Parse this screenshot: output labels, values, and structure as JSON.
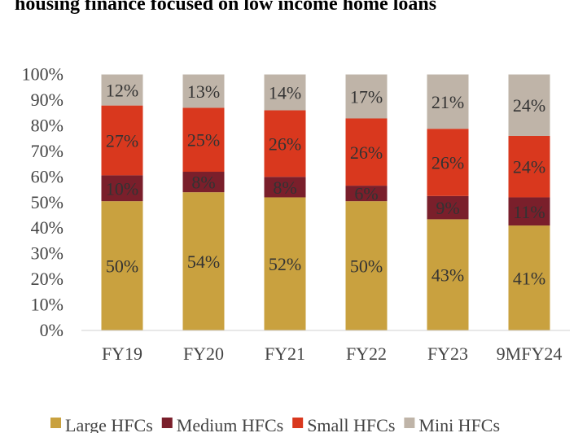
{
  "title": "housing finance focused on low income home loans",
  "chart_data": {
    "type": "bar",
    "stacked": true,
    "percent": true,
    "categories": [
      "FY19",
      "FY20",
      "FY21",
      "FY22",
      "FY23",
      "9MFY24"
    ],
    "series": [
      {
        "name": "Large HFCs",
        "color": "#C9A13F",
        "values": [
          50,
          54,
          52,
          50,
          43,
          41
        ],
        "labels": [
          "50%",
          "54%",
          "52%",
          "50%",
          "43%",
          "41%"
        ]
      },
      {
        "name": "Medium HFCs",
        "color": "#7A1F2B",
        "values": [
          10,
          8,
          8,
          6,
          9,
          11
        ],
        "labels": [
          "10%",
          "8%",
          "8%",
          "6%",
          "9%",
          "11%"
        ]
      },
      {
        "name": "Small HFCs",
        "color": "#D9381E",
        "values": [
          27,
          25,
          26,
          26,
          26,
          24
        ],
        "labels": [
          "27%",
          "25%",
          "26%",
          "26%",
          "26%",
          "24%"
        ]
      },
      {
        "name": "Mini HFCs",
        "color": "#BFB4A8",
        "values": [
          12,
          13,
          14,
          17,
          21,
          24
        ],
        "labels": [
          "12%",
          "13%",
          "14%",
          "17%",
          "21%",
          "24%"
        ]
      }
    ],
    "yticks": [
      "0%",
      "10%",
      "20%",
      "30%",
      "40%",
      "50%",
      "60%",
      "70%",
      "80%",
      "90%",
      "100%"
    ],
    "ylim": [
      0,
      100
    ],
    "grid": false,
    "legend_position": "bottom"
  }
}
